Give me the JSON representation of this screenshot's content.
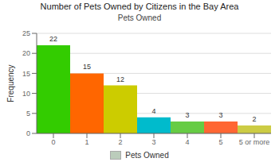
{
  "chart_data": {
    "type": "bar",
    "title": "Number of Pets Owned by Citizens in the Bay Area",
    "subtitle": "Pets Owned",
    "ylabel": "Frequency",
    "categories": [
      "0",
      "1",
      "2",
      "3",
      "4",
      "5",
      "5 or more"
    ],
    "series": [
      {
        "name": "Pets Owned",
        "color": "#bbccbb",
        "colors": [
          "#33cc00",
          "#ff6600",
          "#cccc00",
          "#00bbcc",
          "#66cc44",
          "#ff6633",
          "#cccc44"
        ],
        "values": [
          22,
          15,
          12,
          4,
          3,
          3,
          2
        ]
      }
    ],
    "ylim": [
      0,
      25
    ],
    "yticks": [
      0,
      5,
      10,
      15,
      20,
      25
    ],
    "grid": true,
    "data_labels": true,
    "legend": "bottom"
  }
}
